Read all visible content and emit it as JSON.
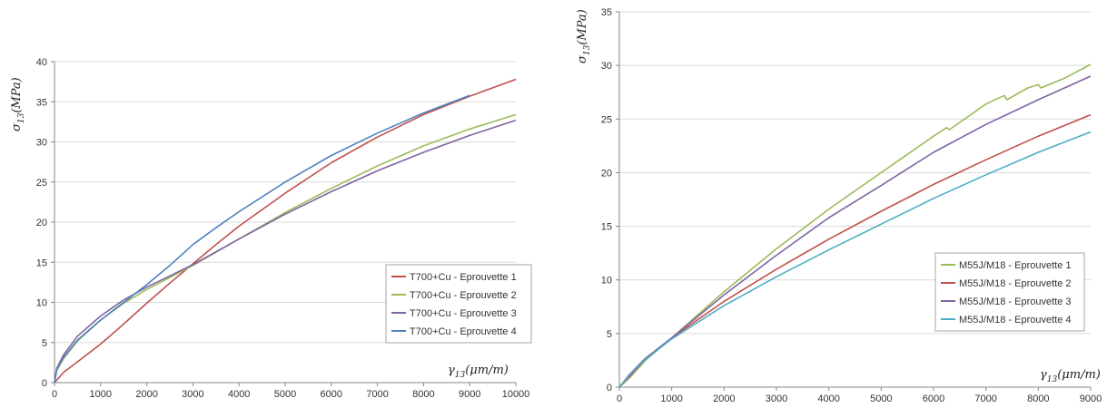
{
  "chart_data": [
    {
      "type": "line",
      "title": "",
      "xlabel": "γ13(μm/m)",
      "ylabel": "σ13(MPa)",
      "xlim": [
        0,
        10000
      ],
      "ylim": [
        0,
        40
      ],
      "xticks": [
        0,
        1000,
        2000,
        3000,
        4000,
        5000,
        6000,
        7000,
        8000,
        9000,
        10000
      ],
      "yticks": [
        0,
        5,
        10,
        15,
        20,
        25,
        30,
        35,
        40
      ],
      "grid": "horizontal",
      "legend": "bottom-right",
      "series": [
        {
          "name": "T700+Cu - Eprouvette 1",
          "color": "#c0504d",
          "x": [
            0,
            200,
            500,
            1000,
            1500,
            2000,
            2500,
            3000,
            3500,
            4000,
            5000,
            6000,
            7000,
            8000,
            9000,
            10000
          ],
          "y": [
            0,
            1.3,
            2.6,
            4.8,
            7.3,
            9.9,
            12.4,
            14.8,
            17.2,
            19.5,
            23.6,
            27.4,
            30.6,
            33.4,
            35.7,
            37.8
          ]
        },
        {
          "name": "T700+Cu - Eprouvette 2",
          "color": "#9bbb59",
          "x": [
            0,
            50,
            200,
            500,
            1000,
            1500,
            2000,
            2500,
            3000,
            4000,
            5000,
            6000,
            7000,
            8000,
            9000,
            10000
          ],
          "y": [
            0,
            1.5,
            3.0,
            5.2,
            7.8,
            9.9,
            11.6,
            13.1,
            14.6,
            17.9,
            21.2,
            24.2,
            27.0,
            29.5,
            31.6,
            33.4
          ]
        },
        {
          "name": "T700+Cu - Eprouvette 3",
          "color": "#8064a2",
          "x": [
            0,
            50,
            200,
            500,
            1000,
            1500,
            2000,
            2500,
            3000,
            4000,
            5000,
            6000,
            7000,
            8000,
            9000,
            10000
          ],
          "y": [
            0,
            1.8,
            3.5,
            5.8,
            8.3,
            10.3,
            11.9,
            13.3,
            14.7,
            17.9,
            21.0,
            23.8,
            26.4,
            28.7,
            30.8,
            32.7
          ]
        },
        {
          "name": "T700+Cu - Eprouvette 4",
          "color": "#4f81bd",
          "x": [
            0,
            50,
            200,
            500,
            1000,
            1500,
            2000,
            2500,
            3000,
            3500,
            4000,
            5000,
            6000,
            7000,
            8000,
            9000
          ],
          "y": [
            0,
            1.7,
            3.2,
            5.3,
            7.8,
            10.0,
            12.2,
            14.6,
            17.2,
            19.3,
            21.3,
            25.0,
            28.3,
            31.1,
            33.6,
            35.8
          ]
        }
      ]
    },
    {
      "type": "line",
      "title": "",
      "xlabel": "γ13(μm/m)",
      "ylabel": "σ13(MPa)",
      "xlim": [
        0,
        9000
      ],
      "ylim": [
        0,
        35
      ],
      "xticks": [
        0,
        1000,
        2000,
        3000,
        4000,
        5000,
        6000,
        7000,
        8000,
        9000
      ],
      "yticks": [
        0,
        5,
        10,
        15,
        20,
        25,
        30,
        35
      ],
      "grid": "horizontal",
      "legend": "bottom-right",
      "series": [
        {
          "name": "M55J/M18 - Eprouvette 1",
          "color": "#9bbb59",
          "x": [
            0,
            200,
            500,
            1000,
            2000,
            3000,
            4000,
            5000,
            6000,
            6250,
            6300,
            7000,
            7350,
            7400,
            7800,
            8000,
            8050,
            8500,
            9000
          ],
          "y": [
            0,
            0.9,
            2.5,
            4.6,
            8.9,
            12.9,
            16.6,
            20.0,
            23.4,
            24.2,
            24.0,
            26.4,
            27.2,
            26.8,
            27.9,
            28.2,
            27.9,
            28.8,
            30.1
          ]
        },
        {
          "name": "M55J/M18 - Eprouvette 2",
          "color": "#c0504d",
          "x": [
            0,
            200,
            500,
            1000,
            2000,
            3000,
            4000,
            5000,
            6000,
            7000,
            8000,
            9000
          ],
          "y": [
            0,
            1.0,
            2.6,
            4.6,
            8.0,
            11.0,
            13.8,
            16.4,
            18.9,
            21.2,
            23.4,
            25.4
          ]
        },
        {
          "name": "M55J/M18 - Eprouvette 3",
          "color": "#8064a2",
          "x": [
            0,
            200,
            500,
            1000,
            2000,
            3000,
            4000,
            5000,
            6000,
            7000,
            8000,
            9000
          ],
          "y": [
            0,
            1.2,
            2.7,
            4.6,
            8.6,
            12.3,
            15.8,
            18.8,
            21.9,
            24.5,
            26.8,
            29.0
          ]
        },
        {
          "name": "M55J/M18 - Eprouvette 4",
          "color": "#4bacc6",
          "x": [
            0,
            200,
            500,
            1000,
            2000,
            3000,
            4000,
            5000,
            6000,
            7000,
            8000,
            9000
          ],
          "y": [
            0,
            1.1,
            2.6,
            4.5,
            7.6,
            10.3,
            12.8,
            15.2,
            17.6,
            19.8,
            21.9,
            23.8
          ]
        }
      ]
    }
  ]
}
